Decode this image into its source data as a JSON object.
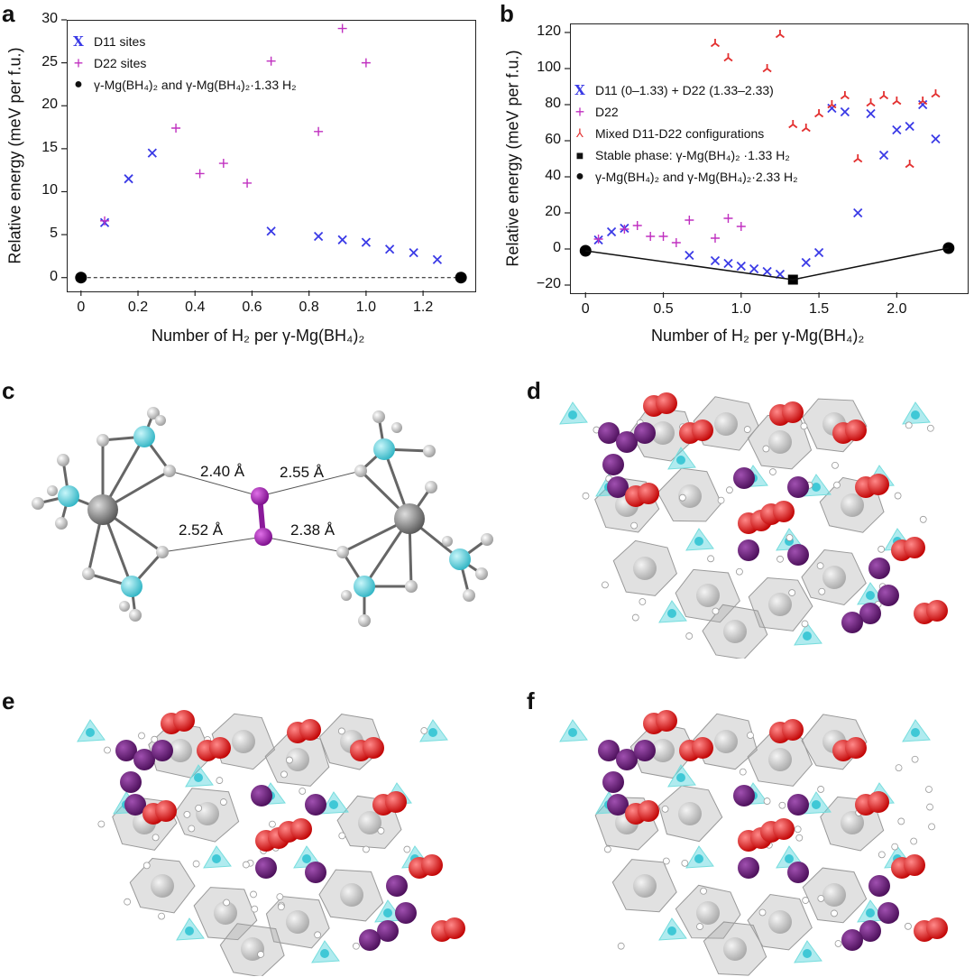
{
  "panels": {
    "a": "a",
    "b": "b",
    "c": "c",
    "d": "d",
    "e": "e",
    "f": "f"
  },
  "colors": {
    "d11": "#3a3ae6",
    "d22": "#c030c0",
    "mixed": "#e33030",
    "black": "#000000",
    "cyan": "#57d4e0",
    "purple": "#6e1e80",
    "red": "#e01010",
    "grey": "#c9c9c9"
  },
  "chart_data": [
    {
      "type": "scatter",
      "panel": "a",
      "title": "",
      "xlabel": "Number of H₂ per γ-Mg(BH₄)₂",
      "ylabel": "Relative energy (meV per f.u.)",
      "xlim": [
        -0.05,
        1.38
      ],
      "ylim": [
        -1.5,
        30
      ],
      "xticks": [
        "0",
        "0.2",
        "0.4",
        "0.6",
        "0.8",
        "1.0",
        "1.2"
      ],
      "yticks": [
        "0",
        "5",
        "10",
        "15",
        "20",
        "25",
        "30"
      ],
      "legend": [
        "D11 sites",
        "D22 sites",
        "γ-Mg(BH₄)₂ and γ-Mg(BH₄)₂·1.33 H₂"
      ],
      "series": [
        {
          "name": "D11 sites",
          "marker": "x",
          "x": [
            0.083,
            0.167,
            0.25,
            0.667,
            0.833,
            0.917,
            1.0,
            1.083,
            1.167,
            1.25
          ],
          "y": [
            6.4,
            11.5,
            14.5,
            5.4,
            4.8,
            4.4,
            4.1,
            3.3,
            2.9,
            2.1
          ]
        },
        {
          "name": "D22 sites",
          "marker": "+",
          "x": [
            0.083,
            0.333,
            0.417,
            0.5,
            0.583,
            0.667,
            0.833,
            0.917,
            1.0
          ],
          "y": [
            6.6,
            17.4,
            12.1,
            13.3,
            11.0,
            25.2,
            17.0,
            29.0,
            25.0
          ]
        },
        {
          "name": "endpoints",
          "marker": "circle",
          "x": [
            0,
            1.333
          ],
          "y": [
            0,
            0
          ]
        }
      ]
    },
    {
      "type": "scatter",
      "panel": "b",
      "title": "",
      "xlabel": "Number of H₂ per γ-Mg(BH₄)₂",
      "ylabel": "Relative energy (meV per f.u.)",
      "xlim": [
        -0.1,
        2.45
      ],
      "ylim": [
        -24,
        125
      ],
      "xticks": [
        "0",
        "0.5",
        "1.0",
        "1.5",
        "2.0"
      ],
      "yticks": [
        "−20",
        "0",
        "20",
        "40",
        "60",
        "80",
        "100",
        "120"
      ],
      "legend": [
        "D11 (0–1.33) + D22 (1.33–2.33)",
        "D22",
        "Mixed D11-D22 configurations",
        "Stable phase: γ-Mg(BH₄)₂ ·1.33 H₂",
        "γ-Mg(BH₄)₂ and γ-Mg(BH₄)₂·2.33 H₂"
      ],
      "series": [
        {
          "name": "D11 (0–1.33) + D22 (1.33–2.33)",
          "marker": "x",
          "x": [
            0.083,
            0.167,
            0.25,
            0.667,
            0.833,
            0.917,
            1.0,
            1.083,
            1.167,
            1.25,
            1.417,
            1.5,
            1.583,
            1.667,
            1.75,
            1.833,
            1.917,
            2.0,
            2.083,
            2.167,
            2.25
          ],
          "y": [
            5,
            9.5,
            11.5,
            -3.5,
            -6.5,
            -8,
            -9.5,
            -11,
            -12.5,
            -14,
            -7.5,
            -2,
            78,
            76,
            20,
            75,
            52,
            66,
            68,
            80,
            61
          ]
        },
        {
          "name": "D22",
          "marker": "+",
          "x": [
            0.083,
            0.25,
            0.333,
            0.417,
            0.5,
            0.583,
            0.667,
            0.833,
            0.917,
            1.0
          ],
          "y": [
            5.5,
            11,
            13,
            7,
            7,
            3.5,
            16,
            6,
            17,
            12.5
          ]
        },
        {
          "name": "Mixed D11-D22 configurations",
          "marker": "tri",
          "x": [
            0.833,
            0.917,
            1.167,
            1.25,
            1.333,
            1.417,
            1.5,
            1.583,
            1.667,
            1.75,
            1.833,
            1.917,
            2.0,
            2.083,
            2.167,
            2.25
          ],
          "y": [
            114,
            106,
            100,
            119,
            69,
            67,
            75,
            80,
            85,
            50,
            81,
            85,
            82,
            47,
            82,
            86
          ]
        },
        {
          "name": "Stable phase",
          "marker": "square",
          "x": [
            1.333
          ],
          "y": [
            -17
          ]
        },
        {
          "name": "endpoints",
          "marker": "circle",
          "x": [
            0,
            2.333
          ],
          "y": [
            -1,
            0.5
          ]
        },
        {
          "name": "hull",
          "marker": "line",
          "x": [
            0,
            1.333,
            2.333
          ],
          "y": [
            -1,
            -17,
            0.5
          ]
        }
      ]
    }
  ],
  "panel_c": {
    "distances": [
      "2.40 Å",
      "2.55 Å",
      "2.52 Å",
      "2.38 Å"
    ]
  }
}
